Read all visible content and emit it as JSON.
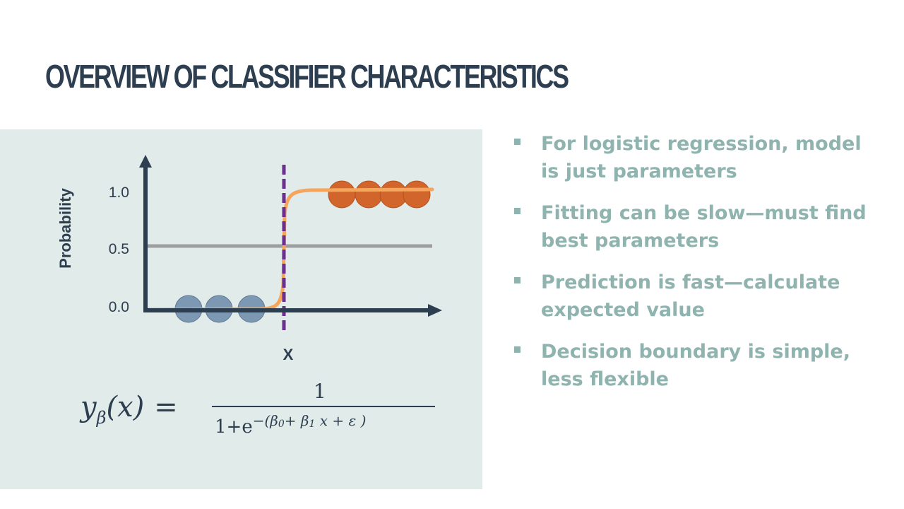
{
  "slide": {
    "title": "OVERVIEW OF CLASSIFIER CHARACTERISTICS"
  },
  "diagram": {
    "y_axis_label": "Probability",
    "y_ticks": [
      "1.0",
      "0.5",
      "0.0"
    ],
    "x_axis_label": "X",
    "threshold_value": 0.5,
    "class_0_count": 3,
    "class_1_count": 4,
    "colors": {
      "panel": "#e1ebea",
      "axis": "#2c3e50",
      "sigmoid": "#f5a55c",
      "threshold": "#9e9e9e",
      "boundary": "#6a2f8f",
      "class_0": "#7c98b3",
      "class_1": "#d2652c"
    }
  },
  "formula": {
    "lhs_var": "y",
    "lhs_sub": "β",
    "lhs_arg": "(x)",
    "equals": "=",
    "numerator": "1",
    "denominator_base": "1+e",
    "denominator_exponent": "−(β",
    "exp_sub0": "0",
    "exp_mid": "+ β",
    "exp_sub1": "1",
    "exp_tail": "x + ε )"
  },
  "bullets": [
    {
      "text": "For logistic regression, model is just parameters"
    },
    {
      "text": "Fitting can be slow—must find best parameters"
    },
    {
      "text": "Prediction is fast—calculate expected value"
    },
    {
      "text": "Decision boundary is simple, less flexible"
    }
  ]
}
